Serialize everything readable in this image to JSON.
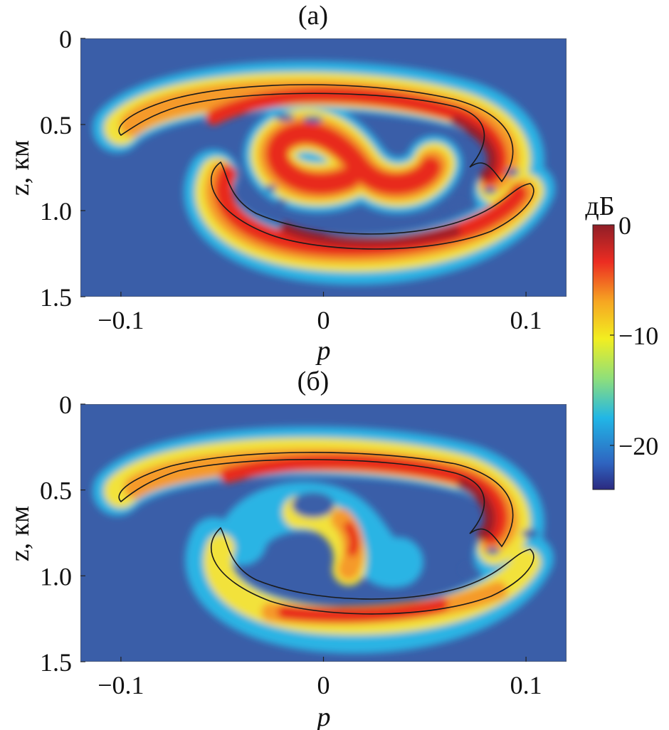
{
  "chart_data": [
    {
      "type": "heatmap",
      "title": "(а)",
      "xlabel": "p",
      "ylabel": "z, км",
      "xlim": [
        -0.12,
        0.12
      ],
      "ylim": [
        0,
        1.5
      ],
      "y_inverted": true,
      "xticks": [
        -0.1,
        0,
        0.1
      ],
      "xtick_labels": [
        "−0.1",
        "0",
        "0.1"
      ],
      "yticks": [
        0,
        0.5,
        1.0,
        1.5
      ],
      "ytick_labels": [
        "0",
        "0.5",
        "1.0",
        "1.5"
      ]
    },
    {
      "type": "heatmap",
      "title": "(б)",
      "xlabel": "p",
      "ylabel": "z, км",
      "xlim": [
        -0.12,
        0.12
      ],
      "ylim": [
        0,
        1.5
      ],
      "y_inverted": true,
      "xticks": [
        -0.1,
        0,
        0.1
      ],
      "xtick_labels": [
        "−0.1",
        "0",
        "0.1"
      ],
      "yticks": [
        0,
        0.5,
        1.0,
        1.5
      ],
      "ytick_labels": [
        "0",
        "0.5",
        "1.0",
        "1.5"
      ]
    }
  ],
  "colorbar": {
    "label": "дБ",
    "range": [
      -24,
      0
    ],
    "ticks": [
      0,
      -10,
      -20
    ],
    "tick_labels": [
      "0",
      "−10",
      "−20"
    ],
    "colormap": [
      "#2b2a80",
      "#2f64c0",
      "#21b6e6",
      "#8fdf7a",
      "#f2ee20",
      "#f6a622",
      "#ec2c22",
      "#8f1e27"
    ]
  },
  "colors": {
    "background": "#3a5ea8",
    "contour": "#1a1a1a"
  }
}
